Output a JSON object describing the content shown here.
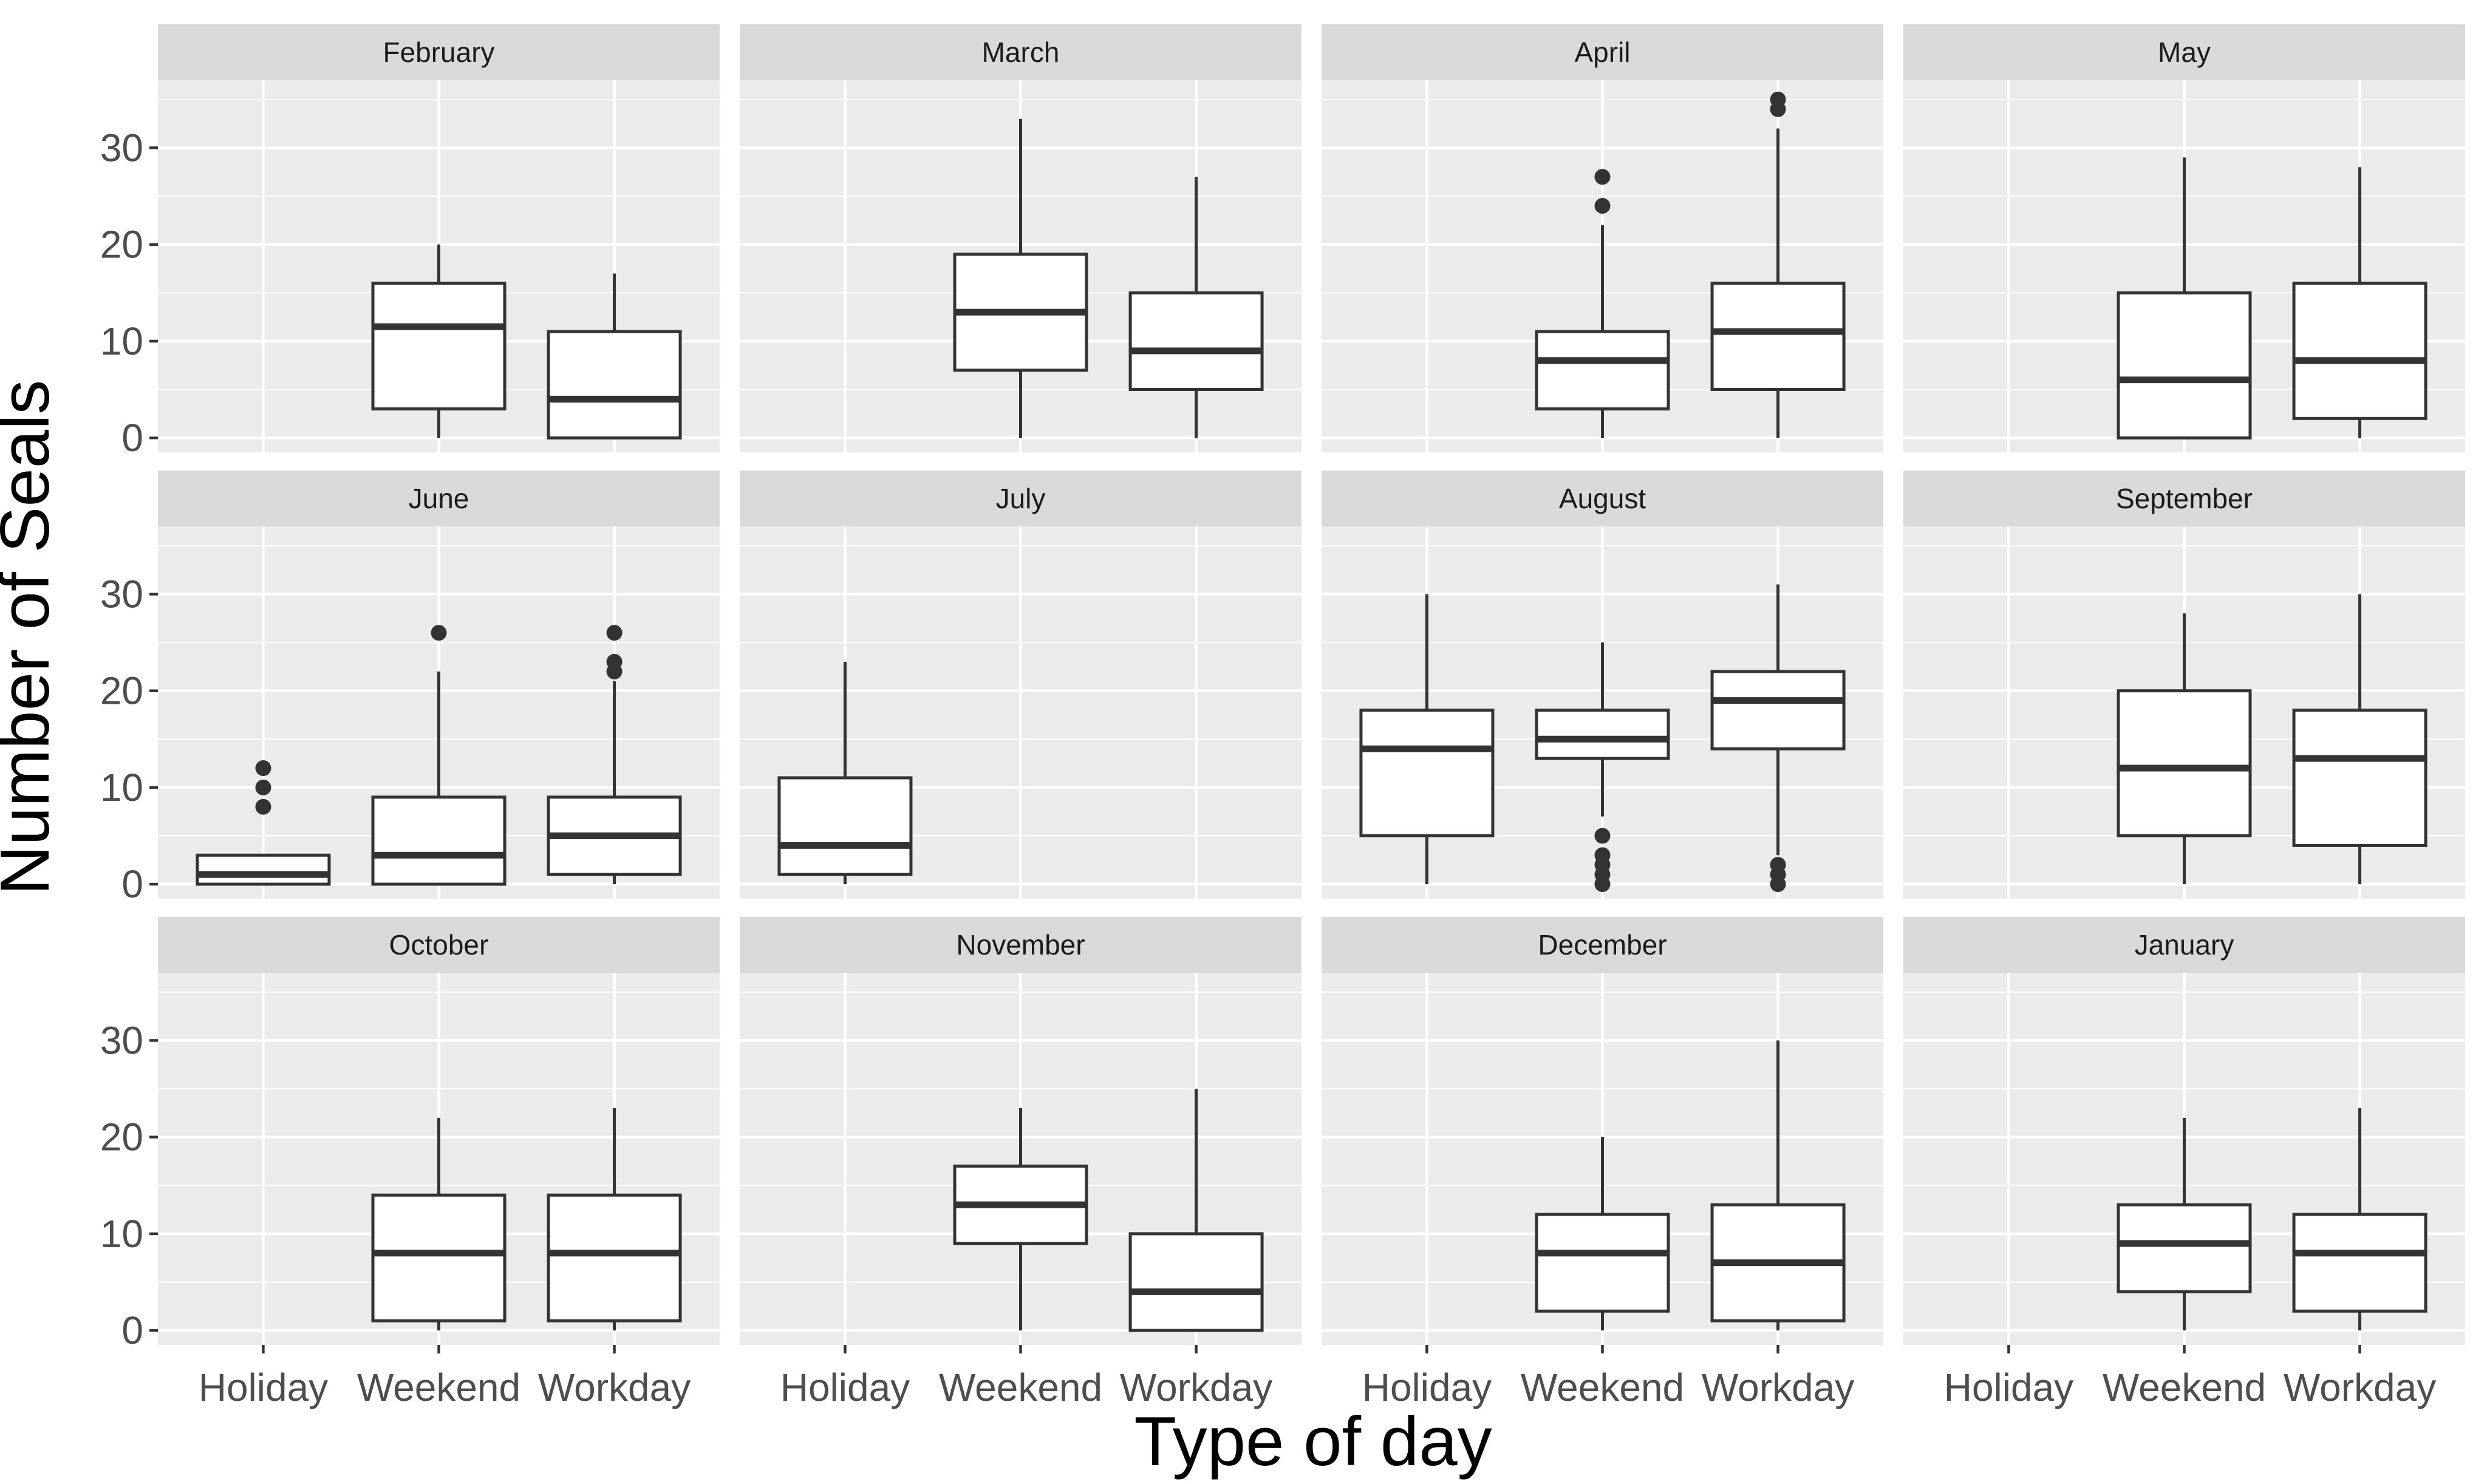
{
  "chart_data": {
    "type": "boxplot",
    "facet_layout": "3 rows x 4 columns",
    "xlabel": "Type of day",
    "ylabel": "Number of Seals",
    "categories": [
      "Holiday",
      "Weekend",
      "Workday"
    ],
    "y_ticks": [
      0,
      10,
      20,
      30
    ],
    "ylim": [
      -1.5,
      37
    ],
    "colors": {
      "panel_background": "#ebebeb",
      "grid_major": "#ffffff",
      "strip_background": "#d9d9d9",
      "box_fill": "#ffffff",
      "box_line": "#333333",
      "outlier": "#333333"
    },
    "panels": [
      {
        "month": "February",
        "boxes": [
          {
            "category": "Weekend",
            "whisker_low": 0,
            "q1": 3,
            "median": 11.5,
            "q3": 16,
            "whisker_high": 20,
            "outliers": []
          },
          {
            "category": "Workday",
            "whisker_low": 0,
            "q1": 0,
            "median": 4,
            "q3": 11,
            "whisker_high": 17,
            "outliers": []
          }
        ]
      },
      {
        "month": "March",
        "boxes": [
          {
            "category": "Weekend",
            "whisker_low": 0,
            "q1": 7,
            "median": 13,
            "q3": 19,
            "whisker_high": 33,
            "outliers": []
          },
          {
            "category": "Workday",
            "whisker_low": 0,
            "q1": 5,
            "median": 9,
            "q3": 15,
            "whisker_high": 27,
            "outliers": []
          }
        ]
      },
      {
        "month": "April",
        "boxes": [
          {
            "category": "Weekend",
            "whisker_low": 0,
            "q1": 3,
            "median": 8,
            "q3": 11,
            "whisker_high": 22,
            "outliers": [
              24,
              27
            ]
          },
          {
            "category": "Workday",
            "whisker_low": 0,
            "q1": 5,
            "median": 11,
            "q3": 16,
            "whisker_high": 32,
            "outliers": [
              34,
              35
            ]
          }
        ]
      },
      {
        "month": "May",
        "boxes": [
          {
            "category": "Weekend",
            "whisker_low": 0,
            "q1": 0,
            "median": 6,
            "q3": 15,
            "whisker_high": 29,
            "outliers": []
          },
          {
            "category": "Workday",
            "whisker_low": 0,
            "q1": 2,
            "median": 8,
            "q3": 16,
            "whisker_high": 28,
            "outliers": []
          }
        ]
      },
      {
        "month": "June",
        "boxes": [
          {
            "category": "Holiday",
            "whisker_low": 0,
            "q1": 0,
            "median": 1,
            "q3": 3,
            "whisker_high": 3,
            "outliers": [
              8,
              10,
              12
            ]
          },
          {
            "category": "Weekend",
            "whisker_low": 0,
            "q1": 0,
            "median": 3,
            "q3": 9,
            "whisker_high": 22,
            "outliers": [
              26
            ]
          },
          {
            "category": "Workday",
            "whisker_low": 0,
            "q1": 1,
            "median": 5,
            "q3": 9,
            "whisker_high": 21,
            "outliers": [
              22,
              23,
              26
            ]
          }
        ]
      },
      {
        "month": "July",
        "boxes": [
          {
            "category": "Holiday",
            "whisker_low": 0,
            "q1": 1,
            "median": 4,
            "q3": 11,
            "whisker_high": 23,
            "outliers": []
          }
        ]
      },
      {
        "month": "August",
        "boxes": [
          {
            "category": "Holiday",
            "whisker_low": 0,
            "q1": 5,
            "median": 14,
            "q3": 18,
            "whisker_high": 30,
            "outliers": []
          },
          {
            "category": "Weekend",
            "whisker_low": 7,
            "q1": 13,
            "median": 15,
            "q3": 18,
            "whisker_high": 25,
            "outliers": [
              0,
              1,
              2,
              3,
              5
            ]
          },
          {
            "category": "Workday",
            "whisker_low": 3,
            "q1": 14,
            "median": 19,
            "q3": 22,
            "whisker_high": 31,
            "outliers": [
              0,
              1,
              2
            ]
          }
        ]
      },
      {
        "month": "September",
        "boxes": [
          {
            "category": "Weekend",
            "whisker_low": 0,
            "q1": 5,
            "median": 12,
            "q3": 20,
            "whisker_high": 28,
            "outliers": []
          },
          {
            "category": "Workday",
            "whisker_low": 0,
            "q1": 4,
            "median": 13,
            "q3": 18,
            "whisker_high": 30,
            "outliers": []
          }
        ]
      },
      {
        "month": "October",
        "boxes": [
          {
            "category": "Weekend",
            "whisker_low": 0,
            "q1": 1,
            "median": 8,
            "q3": 14,
            "whisker_high": 22,
            "outliers": []
          },
          {
            "category": "Workday",
            "whisker_low": 0,
            "q1": 1,
            "median": 8,
            "q3": 14,
            "whisker_high": 23,
            "outliers": []
          }
        ]
      },
      {
        "month": "November",
        "boxes": [
          {
            "category": "Weekend",
            "whisker_low": 0,
            "q1": 9,
            "median": 13,
            "q3": 17,
            "whisker_high": 23,
            "outliers": []
          },
          {
            "category": "Workday",
            "whisker_low": 0,
            "q1": 0,
            "median": 4,
            "q3": 10,
            "whisker_high": 25,
            "outliers": []
          }
        ]
      },
      {
        "month": "December",
        "boxes": [
          {
            "category": "Weekend",
            "whisker_low": 0,
            "q1": 2,
            "median": 8,
            "q3": 12,
            "whisker_high": 20,
            "outliers": []
          },
          {
            "category": "Workday",
            "whisker_low": 0,
            "q1": 1,
            "median": 7,
            "q3": 13,
            "whisker_high": 30,
            "outliers": []
          }
        ]
      },
      {
        "month": "January",
        "boxes": [
          {
            "category": "Weekend",
            "whisker_low": 0,
            "q1": 4,
            "median": 9,
            "q3": 13,
            "whisker_high": 22,
            "outliers": []
          },
          {
            "category": "Workday",
            "whisker_low": 0,
            "q1": 2,
            "median": 8,
            "q3": 12,
            "whisker_high": 23,
            "outliers": []
          }
        ]
      }
    ]
  }
}
